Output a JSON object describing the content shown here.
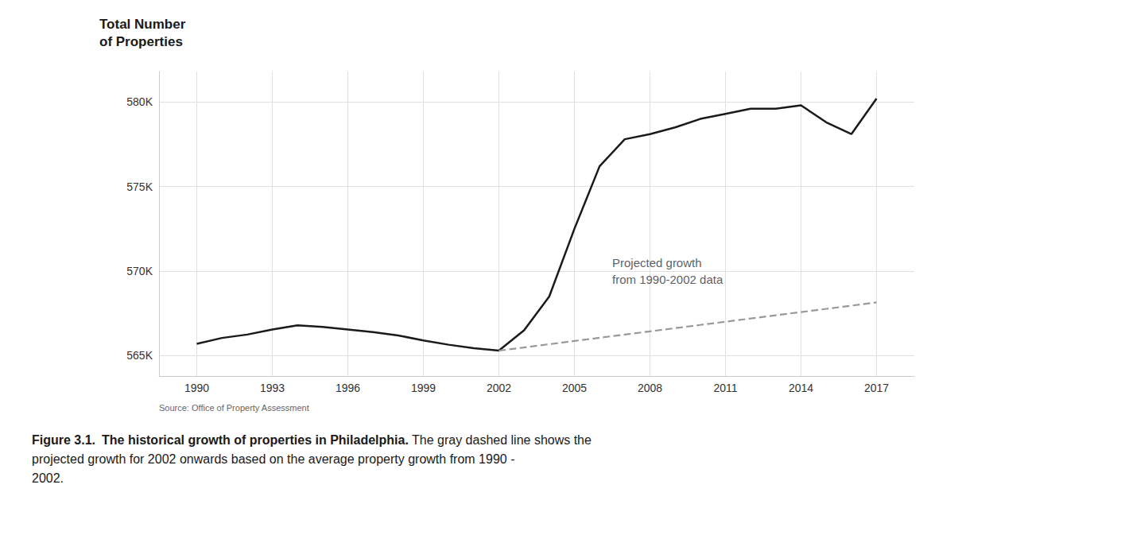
{
  "chart_data": {
    "type": "line",
    "title": "Total Number\nof Properties",
    "source": "Source: Office of Property Assessment",
    "annotations": [
      {
        "text": "Projected growth\nfrom 1990-2002 data",
        "x": 2006.5,
        "y": 570000
      }
    ],
    "caption_parts": [
      {
        "text": "Figure 3.1.",
        "color": "#e8a020"
      },
      {
        "text": "The historical growth of properties in Philadelphia."
      },
      {
        "text": " The gray dashed line shows the\nprojected growth for 2002 onwards based on the average property growth from 1990 -\n2002."
      }
    ],
    "xlim": [
      1988.5,
      2018.5
    ],
    "xticks": [
      1990,
      1993,
      1996,
      1999,
      2002,
      2005,
      2008,
      2011,
      2014,
      2017
    ],
    "ylim": [
      563800,
      581800
    ],
    "yticks": [
      {
        "value": 565000,
        "label": "565K"
      },
      {
        "value": 570000,
        "label": "570K"
      },
      {
        "value": 575000,
        "label": "575K"
      },
      {
        "value": 580000,
        "label": "580K"
      }
    ],
    "grid": true,
    "series": [
      {
        "color": "#1a1a1a",
        "line_style": "solid",
        "x": [
          1990,
          1991,
          1992,
          1993,
          1994,
          1995,
          1996,
          1997,
          1998,
          1999,
          2000,
          2001,
          2002,
          2003,
          2004,
          2005,
          2006,
          2007,
          2008,
          2009,
          2010,
          2011,
          2012,
          2013,
          2014,
          2015,
          2016,
          2017
        ],
        "values": [
          565700,
          566050,
          566250,
          566550,
          566800,
          566700,
          566550,
          566400,
          566200,
          565900,
          565650,
          565450,
          565300,
          566500,
          568500,
          572500,
          576200,
          577800,
          578100,
          578500,
          579000,
          579300,
          579600,
          579600,
          579800,
          578800,
          578100,
          580200
        ]
      },
      {
        "color": "#999999",
        "line_style": "dashed",
        "x": [
          2002,
          2003,
          2004,
          2005,
          2006,
          2007,
          2008,
          2009,
          2010,
          2011,
          2012,
          2013,
          2014,
          2015,
          2016,
          2017
        ],
        "values": [
          565300,
          565490,
          565680,
          565870,
          566060,
          566250,
          566440,
          566630,
          566820,
          567010,
          567200,
          567390,
          567580,
          567770,
          567960,
          568150
        ]
      }
    ]
  }
}
